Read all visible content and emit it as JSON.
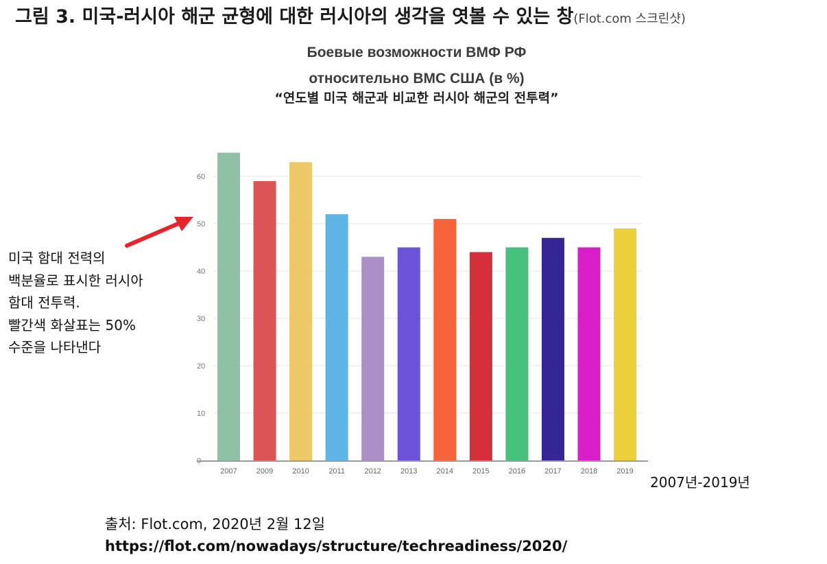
{
  "figure": {
    "caption": "그림 3. 미국-러시아 해군 균형에 대한 러시아의 생각을 엿볼 수 있는 창",
    "caption_source": "(Flot.com 스크린샷)"
  },
  "chart_data": {
    "type": "bar",
    "title": "Боевые возможности ВМФ РФ",
    "subtitle": "относительно ВМС США (в %)",
    "translated_title": "“연도별 미국 해군과 비교한 러시아 해군의 전투력”",
    "categories": [
      "2007",
      "2009",
      "2010",
      "2011",
      "2012",
      "2013",
      "2014",
      "2015",
      "2016",
      "2017",
      "2018",
      "2019"
    ],
    "values": [
      65,
      59,
      63,
      52,
      43,
      45,
      51,
      44,
      45,
      47,
      45,
      49
    ],
    "colors": [
      "#90c0a5",
      "#db5556",
      "#ecc866",
      "#5cb5e5",
      "#ac8fc7",
      "#6c53d9",
      "#f7643a",
      "#d42f3a",
      "#46c17e",
      "#362594",
      "#d81ec6",
      "#ebd03c"
    ],
    "yticks": [
      0,
      10,
      20,
      30,
      40,
      50,
      60
    ],
    "ylim": [
      0,
      65
    ],
    "grid": true,
    "xlabel": "",
    "ylabel": ""
  },
  "annotation": {
    "lines": [
      "미국 함대 전력의",
      "백분율로 표시한 러시아",
      "함대 전투력.",
      "빨간색 화살표는 50%",
      "수준을 나타낸다"
    ],
    "arrow_color": "#e8232b"
  },
  "range_label": "2007년-2019년",
  "source": {
    "line": "출처: Flot.com, 2020년 2월 12일",
    "url": "https://flot.com/nowadays/structure/techreadiness/2020/"
  }
}
